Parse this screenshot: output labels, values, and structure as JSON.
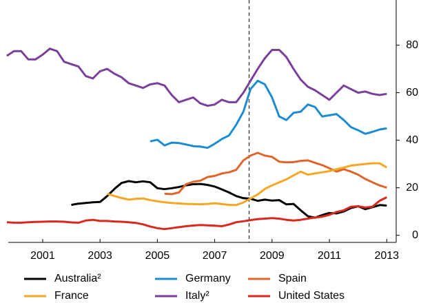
{
  "chart_data": {
    "type": "line",
    "x": [
      2000.25,
      2000.5,
      2000.75,
      2001,
      2001.25,
      2001.5,
      2001.75,
      2002,
      2002.25,
      2002.5,
      2002.75,
      2003,
      2003.25,
      2003.5,
      2003.75,
      2004,
      2004.25,
      2004.5,
      2004.75,
      2005,
      2005.25,
      2005.5,
      2005.75,
      2006,
      2006.25,
      2006.5,
      2006.75,
      2007,
      2007.25,
      2007.5,
      2007.75,
      2008,
      2008.25,
      2008.5,
      2008.75,
      2009,
      2009.25,
      2009.5,
      2009.75,
      2010,
      2010.25,
      2010.5,
      2010.75,
      2011,
      2011.25,
      2011.5,
      2011.75,
      2012,
      2012.25,
      2012.5,
      2012.75,
      2013,
      2013.25,
      2013.5
    ],
    "series": [
      {
        "name": "Australia²",
        "color": "#000000",
        "values": [
          null,
          null,
          null,
          null,
          null,
          null,
          null,
          null,
          null,
          12.8,
          13.3,
          13.6,
          13.9,
          14,
          16.5,
          19.5,
          22,
          22.8,
          22.3,
          22.7,
          22.3,
          19.8,
          19.4,
          19.8,
          20.3,
          21,
          21.5,
          21.6,
          21.2,
          20.5,
          19.3,
          18,
          16.5,
          15.6,
          15.4,
          14.5,
          15,
          14.6,
          14.8,
          13,
          13.2,
          10.5,
          8,
          7.4,
          8.5,
          9.4,
          9.2,
          10,
          11.5,
          12.2,
          11,
          11.8,
          12.7,
          12.5
        ]
      },
      {
        "name": "Germany",
        "color": "#1a8ccf",
        "values": [
          null,
          null,
          null,
          null,
          null,
          null,
          null,
          null,
          null,
          null,
          null,
          null,
          null,
          null,
          null,
          null,
          null,
          null,
          null,
          null,
          39.5,
          40.2,
          37.8,
          39,
          38.8,
          38.2,
          37.5,
          37.3,
          36.8,
          38.5,
          40.5,
          42,
          46.5,
          52,
          61.5,
          65,
          63.5,
          58,
          50,
          48.5,
          51.5,
          52,
          55,
          54,
          50,
          50.5,
          51,
          48.5,
          45.5,
          44.2,
          42.7,
          43.5,
          44.5,
          45
        ]
      },
      {
        "name": "Spain",
        "color": "#e0652a",
        "values": [
          null,
          null,
          null,
          null,
          null,
          null,
          null,
          null,
          null,
          null,
          null,
          null,
          null,
          null,
          null,
          null,
          null,
          null,
          null,
          null,
          null,
          null,
          17.5,
          17.3,
          18,
          21.5,
          22.5,
          23,
          24.5,
          25,
          26,
          26.5,
          27.5,
          31.5,
          33.5,
          34.7,
          33.5,
          33,
          31,
          30.7,
          30.8,
          31.3,
          31.5,
          30.5,
          29.5,
          28.2,
          26.8,
          27.8,
          26.8,
          25.5,
          23.7,
          22.3,
          21,
          20
        ]
      },
      {
        "name": "France",
        "color": "#f5a623",
        "values": [
          null,
          null,
          null,
          null,
          null,
          null,
          null,
          null,
          null,
          null,
          null,
          null,
          null,
          null,
          17.5,
          16.5,
          15.7,
          15,
          15.3,
          15.5,
          14.8,
          14.3,
          13.9,
          13.6,
          13.4,
          13.2,
          13.1,
          13,
          13.2,
          13.5,
          13.1,
          12.8,
          12.7,
          13.8,
          15.5,
          17.2,
          19.5,
          21,
          22.3,
          23.5,
          25.2,
          26.8,
          25.5,
          26,
          26.5,
          27,
          27.8,
          28.5,
          29.3,
          29.7,
          30,
          30.3,
          30.3,
          28.5
        ]
      },
      {
        "name": "Italy²",
        "color": "#7a3f98",
        "values": [
          75.5,
          77.5,
          77.5,
          74,
          74,
          76,
          78.5,
          77.5,
          73,
          72,
          71,
          67,
          66,
          69,
          70,
          68,
          66.5,
          64,
          63,
          62,
          63.5,
          64,
          63,
          59,
          56,
          57,
          58,
          55.5,
          54.5,
          55,
          57,
          56,
          56,
          60,
          65,
          70,
          74.5,
          78,
          78,
          75,
          70,
          65.5,
          62.5,
          61,
          59,
          57,
          60,
          63,
          61.5,
          60,
          60.5,
          59.5,
          59,
          59.5
        ]
      },
      {
        "name": "United States",
        "color": "#d9281c",
        "values": [
          5.5,
          5.3,
          5.3,
          5.5,
          5.6,
          5.7,
          5.8,
          5.8,
          5.7,
          5.4,
          5.3,
          6.2,
          6.5,
          6,
          6,
          5.8,
          5.7,
          5.5,
          5.2,
          4.6,
          3.7,
          3,
          2.6,
          3,
          3.4,
          3.8,
          4.1,
          4.3,
          4.2,
          4,
          3.8,
          4.5,
          5.5,
          5.9,
          6.4,
          6.8,
          7,
          7.2,
          7,
          6.5,
          6.2,
          6.5,
          7,
          7.5,
          7.8,
          8.6,
          9.8,
          10.5,
          12,
          12.2,
          11.7,
          12,
          14.5,
          16
        ]
      }
    ],
    "xlim": [
      2000.3,
      2013.83
    ],
    "xticks": [
      {
        "value": 2001.5,
        "label": "2001"
      },
      {
        "value": 2003.5,
        "label": "2003"
      },
      {
        "value": 2005.5,
        "label": "2005"
      },
      {
        "value": 2007.5,
        "label": "2007"
      },
      {
        "value": 2009.5,
        "label": "2009"
      },
      {
        "value": 2011.5,
        "label": "2011"
      },
      {
        "value": 2013.5,
        "label": "2013"
      }
    ],
    "ylim": [
      -3,
      99
    ],
    "yticks": [
      0,
      20,
      40,
      60,
      80
    ],
    "vline": 2008.7
  }
}
